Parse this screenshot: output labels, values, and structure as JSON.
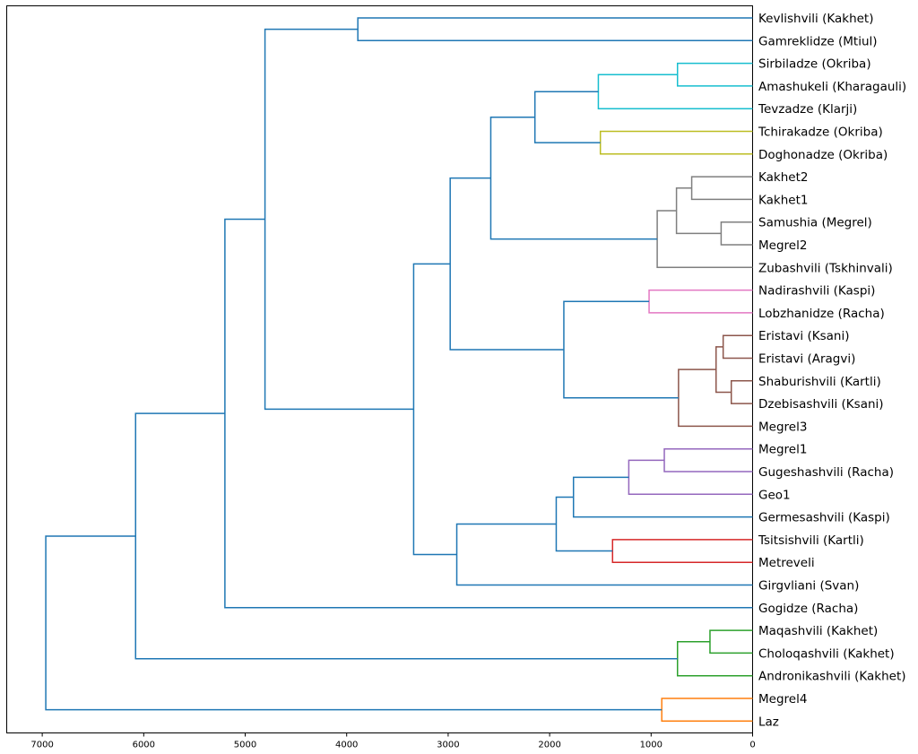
{
  "chart_data": {
    "type": "dendrogram",
    "orientation": "left",
    "xlim": [
      7350,
      0
    ],
    "xticks": [
      7000,
      6000,
      5000,
      4000,
      3000,
      2000,
      1000,
      0
    ],
    "grid": false,
    "above_threshold_color": "#1f77b4",
    "leaves": [
      "Kevlishvili (Kakhet)",
      "Gamreklidze (Mtiul)",
      "Sirbiladze (Okriba)",
      "Amashukeli (Kharagauli)",
      "Tevzadze (Klarji)",
      "Tchirakadze (Okriba)",
      "Doghonadze (Okriba)",
      "Kakhet2",
      "Kakhet1",
      "Samushia (Megrel)",
      "Megrel2",
      "Zubashvili (Tskhinvali)",
      "Nadirashvili (Kaspi)",
      "Lobzhanidze (Racha)",
      "Eristavi (Ksani)",
      "Eristavi (Aragvi)",
      "Shaburishvili (Kartli)",
      "Dzebisashvili (Ksani)",
      "Megrel3",
      "Megrel1",
      "Gugeshashvili (Racha)",
      "Geo1",
      "Germesashvili (Kaspi)",
      "Tsitsishvili (Kartli)",
      "Metreveli",
      "Girgvliani (Svan)",
      "Gogidze (Racha)",
      "Maqashvili (Kakhet)",
      "Choloqashvili (Kakhet)",
      "Andronikashvili (Kakhet)",
      "Megrel4",
      "Laz"
    ],
    "merges": [
      {
        "id": "c0",
        "a": 0,
        "b": 1,
        "height": 3890,
        "color": "#1f77b4"
      },
      {
        "id": "c1",
        "a": 2,
        "b": 3,
        "height": 740,
        "color": "#17becf"
      },
      {
        "id": "c2",
        "a": "c1",
        "b": 4,
        "height": 1520,
        "color": "#17becf"
      },
      {
        "id": "c3",
        "a": 5,
        "b": 6,
        "height": 1500,
        "color": "#bcbd22"
      },
      {
        "id": "c4",
        "a": "c2",
        "b": "c3",
        "height": 2145,
        "color": "#1f77b4"
      },
      {
        "id": "c5",
        "a": 7,
        "b": 8,
        "height": 600,
        "color": "#7f7f7f"
      },
      {
        "id": "c6",
        "a": 9,
        "b": 10,
        "height": 310,
        "color": "#7f7f7f"
      },
      {
        "id": "c7",
        "a": "c5",
        "b": "c6",
        "height": 750,
        "color": "#7f7f7f"
      },
      {
        "id": "c8",
        "a": "c7",
        "b": 11,
        "height": 940,
        "color": "#7f7f7f"
      },
      {
        "id": "c9",
        "a": "c4",
        "b": "c8",
        "height": 2580,
        "color": "#1f77b4"
      },
      {
        "id": "c10",
        "a": 12,
        "b": 13,
        "height": 1020,
        "color": "#e377c2"
      },
      {
        "id": "c11",
        "a": 14,
        "b": 15,
        "height": 290,
        "color": "#8c564b"
      },
      {
        "id": "c12",
        "a": 16,
        "b": 17,
        "height": 210,
        "color": "#8c564b"
      },
      {
        "id": "c13",
        "a": "c11",
        "b": "c12",
        "height": 360,
        "color": "#8c564b"
      },
      {
        "id": "c14",
        "a": "c13",
        "b": 18,
        "height": 730,
        "color": "#8c564b"
      },
      {
        "id": "c15",
        "a": "c10",
        "b": "c14",
        "height": 1860,
        "color": "#1f77b4"
      },
      {
        "id": "c16",
        "a": "c9",
        "b": "c15",
        "height": 2980,
        "color": "#1f77b4"
      },
      {
        "id": "c17",
        "a": 19,
        "b": 20,
        "height": 870,
        "color": "#9467bd"
      },
      {
        "id": "c18",
        "a": "c17",
        "b": 21,
        "height": 1220,
        "color": "#9467bd"
      },
      {
        "id": "c19",
        "a": "c18",
        "b": 22,
        "height": 1765,
        "color": "#1f77b4"
      },
      {
        "id": "c20",
        "a": 23,
        "b": 24,
        "height": 1380,
        "color": "#d62728"
      },
      {
        "id": "c21",
        "a": "c19",
        "b": "c20",
        "height": 1935,
        "color": "#1f77b4"
      },
      {
        "id": "c22",
        "a": "c21",
        "b": 25,
        "height": 2915,
        "color": "#1f77b4"
      },
      {
        "id": "c23",
        "a": "c16",
        "b": "c22",
        "height": 3340,
        "color": "#1f77b4"
      },
      {
        "id": "c24",
        "a": "c0",
        "b": "c23",
        "height": 4805,
        "color": "#1f77b4"
      },
      {
        "id": "c25",
        "a": "c24",
        "b": 26,
        "height": 5200,
        "color": "#1f77b4"
      },
      {
        "id": "c26",
        "a": 27,
        "b": 28,
        "height": 420,
        "color": "#2ca02c"
      },
      {
        "id": "c27",
        "a": "c26",
        "b": 29,
        "height": 740,
        "color": "#2ca02c"
      },
      {
        "id": "c28",
        "a": "c25",
        "b": "c27",
        "height": 6080,
        "color": "#1f77b4"
      },
      {
        "id": "c29",
        "a": 30,
        "b": 31,
        "height": 895,
        "color": "#ff7f0e"
      },
      {
        "id": "c30",
        "a": "c28",
        "b": "c29",
        "height": 6965,
        "color": "#1f77b4"
      }
    ]
  }
}
